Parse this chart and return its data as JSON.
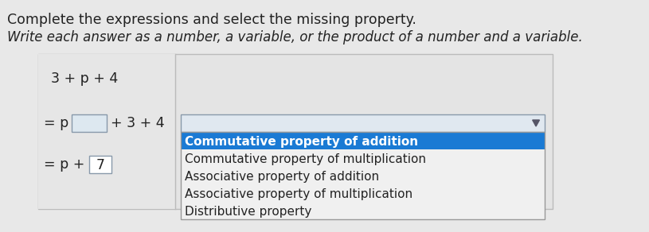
{
  "title": "Complete the expressions and select the missing property.",
  "subtitle": "Write each answer as a number, a variable, or the product of a number and a variable.",
  "page_bg": "#e8e8e8",
  "left_panel_bg": "#e8e8e8",
  "left_panel_border": "#bbbbbb",
  "right_panel_bg": "#d8d8d8",
  "right_panel_border": "#bbbbbb",
  "line1": "3 + p + 4",
  "line2_left": "= p",
  "line2_box": "",
  "line2_right": "+ 3 + 4",
  "line3_left": "= p +",
  "line3_box": "7",
  "dropdown_bg": "#e0e8f0",
  "dropdown_border": "#8899aa",
  "selected_item": "Commutative property of addition",
  "selected_bg": "#1a7ad4",
  "selected_fg": "#ffffff",
  "menu_items": [
    "Commutative property of addition",
    "Commutative property of multiplication",
    "Associative property of addition",
    "Associative property of multiplication",
    "Distributive property"
  ],
  "menu_bg": "#f0f0f0",
  "menu_item_bg": "#f0f0f0",
  "menu_border": "#999999",
  "text_color": "#222222",
  "title_fontsize": 12.5,
  "subtitle_fontsize": 12,
  "content_fontsize": 12.5,
  "menu_fontsize": 11
}
